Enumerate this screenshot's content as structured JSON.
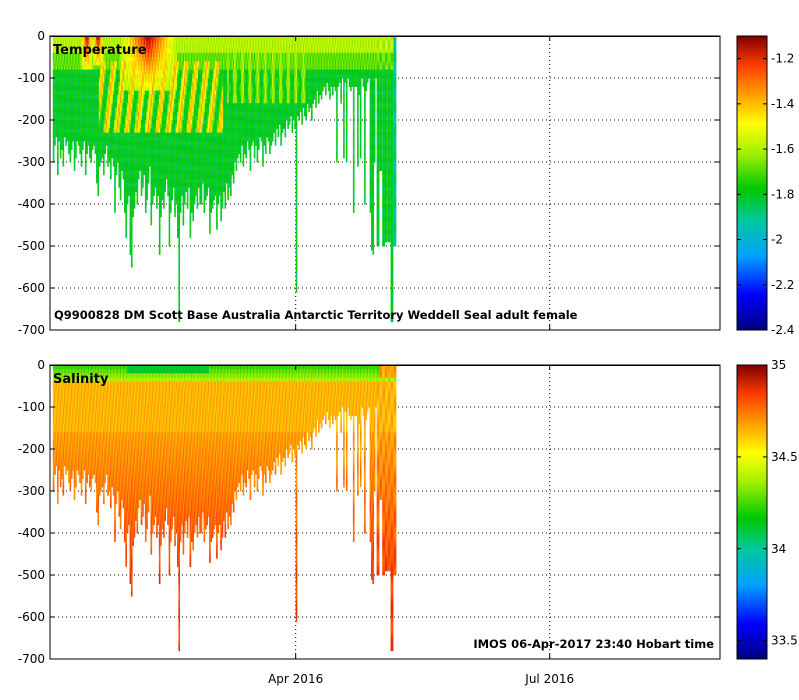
{
  "chart_data": [
    {
      "type": "heatmap",
      "label": "Temperature",
      "annotation": "Q9900828 DM Scott Base Australia Antarctic Territory Weddell Seal adult female",
      "yticks": [
        0,
        -100,
        -200,
        -300,
        -400,
        -500,
        -600,
        -700
      ],
      "ylim": [
        -700,
        0
      ],
      "colorbar": {
        "range": [
          -2.4,
          -1.1
        ],
        "ticks": [
          -1.2,
          -1.4,
          -1.6,
          -1.8,
          -2,
          -2.2,
          -2.4
        ],
        "tick_labels": [
          "-1.2",
          "-1.4",
          "-1.6",
          "-1.8",
          "-2",
          "-2.2",
          "-2.4"
        ]
      }
    },
    {
      "type": "heatmap",
      "label": "Salinity",
      "annotation": "IMOS 06-Apr-2017 23:40 Hobart time",
      "yticks": [
        0,
        -100,
        -200,
        -300,
        -400,
        -500,
        -600,
        -700
      ],
      "ylim": [
        -700,
        0
      ],
      "colorbar": {
        "range": [
          33.4,
          35
        ],
        "ticks": [
          35,
          34.5,
          34,
          33.5
        ],
        "tick_labels": [
          "35",
          "34.5",
          "34",
          "33.5"
        ]
      }
    }
  ],
  "xaxis": {
    "ticks": [
      {
        "label": "Apr 2016",
        "day": 91
      },
      {
        "label": "Jul 2016",
        "day": 182
      }
    ],
    "start_day": 3,
    "end_day": 243
  },
  "profiles": {
    "note": "Vertical profile casts: day of year (2016) and maximum depth (m)",
    "days": [
      4.0,
      4.5,
      5.0,
      5.5,
      6.0,
      6.5,
      7.0,
      7.5,
      8.0,
      8.5,
      9.0,
      9.5,
      10.0,
      10.5,
      11.0,
      11.5,
      12.0,
      12.5,
      13.0,
      13.5,
      14.0,
      14.5,
      15.0,
      15.5,
      16.0,
      16.5,
      17.0,
      17.5,
      18.0,
      18.5,
      19.0,
      19.5,
      20.0,
      20.5,
      21.0,
      21.5,
      22.0,
      22.5,
      23.0,
      23.5,
      24.0,
      24.5,
      25.0,
      25.5,
      26.0,
      26.5,
      27.0,
      27.5,
      28.0,
      28.5,
      29.0,
      29.5,
      30.0,
      30.5,
      31.0,
      31.5,
      32.0,
      32.5,
      33.0,
      33.5,
      34.0,
      34.5,
      35.0,
      35.5,
      36.0,
      36.5,
      37.0,
      37.5,
      38.0,
      38.5,
      39.0,
      39.5,
      40.0,
      40.5,
      41.0,
      41.5,
      42.0,
      42.5,
      43.0,
      43.5,
      44.0,
      44.5,
      45.0,
      45.5,
      46.0,
      46.5,
      47.0,
      47.5,
      48.0,
      48.5,
      49.0,
      49.5,
      50.0,
      50.5,
      51.0,
      51.5,
      52.0,
      52.5,
      53.0,
      53.5,
      54.0,
      54.5,
      55.0,
      55.5,
      56.0,
      56.5,
      57.0,
      57.5,
      58.0,
      58.5,
      59.0,
      59.5,
      60.0,
      60.5,
      61.0,
      61.5,
      62.0,
      62.5,
      63.0,
      63.5,
      64.0,
      64.5,
      65.0,
      65.5,
      66.0,
      66.5,
      67.0,
      67.5,
      68.0,
      68.5,
      69.0,
      69.5,
      70.0,
      70.5,
      71.0,
      71.5,
      72.0,
      72.5,
      73.0,
      73.5,
      74.0,
      74.5,
      75.0,
      75.5,
      76.0,
      76.5,
      77.0,
      77.5,
      78.0,
      78.5,
      79.0,
      79.5,
      80.0,
      80.5,
      81.0,
      81.5,
      82.0,
      82.5,
      83.0,
      83.5,
      84.0,
      84.5,
      85.0,
      85.5,
      86.0,
      86.5,
      87.0,
      87.5,
      88.0,
      88.5,
      89.0,
      89.5,
      90.0,
      90.5,
      91.0,
      91.5,
      92.0,
      92.5,
      93.0,
      93.5,
      94.0,
      94.5,
      95.0,
      95.5,
      96.0,
      96.5,
      97.0,
      97.5,
      98.0,
      98.5,
      99.0,
      99.5,
      100.0,
      100.5,
      101.0,
      101.5,
      102.0,
      102.5,
      103.0,
      103.5,
      104.0,
      104.5,
      105.0,
      105.5,
      106.0,
      106.5,
      107.0,
      107.5,
      108.0,
      108.5,
      109.0,
      109.5,
      110.0,
      110.5,
      111.0,
      111.5,
      112.0,
      112.5,
      113.0,
      113.5,
      114.0,
      114.5,
      115.0,
      115.5,
      116.0,
      116.5,
      117.0,
      117.5,
      118.0,
      118.5,
      119.0,
      119.5,
      120.0,
      121.0,
      122.0,
      123.0,
      124.0,
      125.0,
      126.0,
      128.0,
      130.0,
      131.0,
      132.0,
      134.0,
      135.0,
      137.0,
      138.0,
      140.0,
      142.0,
      144.0,
      147.0,
      154.0,
      157.0,
      159.0,
      162.0,
      164.0,
      166.0,
      167.0,
      173.0,
      177.0,
      182.0,
      186.0,
      193.0,
      195.0,
      196.0,
      197.0,
      198.0,
      200.0,
      208.0,
      209.0,
      218.0,
      228.0,
      229.0,
      231.0,
      232.0
    ],
    "depths": [
      300,
      260,
      240,
      330,
      250,
      290,
      270,
      310,
      240,
      260,
      250,
      280,
      300,
      270,
      250,
      320,
      290,
      250,
      260,
      280,
      310,
      270,
      250,
      330,
      280,
      260,
      290,
      300,
      270,
      260,
      280,
      350,
      380,
      310,
      300,
      290,
      330,
      280,
      260,
      310,
      300,
      340,
      290,
      310,
      420,
      330,
      300,
      360,
      390,
      320,
      340,
      420,
      480,
      400,
      380,
      520,
      550,
      430,
      410,
      370,
      400,
      340,
      320,
      380,
      360,
      330,
      420,
      390,
      350,
      310,
      450,
      400,
      380,
      360,
      410,
      380,
      520,
      430,
      390,
      410,
      370,
      340,
      380,
      500,
      420,
      390,
      360,
      430,
      400,
      480,
      680,
      420,
      380,
      450,
      400,
      370,
      410,
      360,
      480,
      420,
      440,
      400,
      380,
      410,
      360,
      400,
      400,
      350,
      420,
      390,
      380,
      360,
      470,
      420,
      410,
      390,
      380,
      460,
      400,
      380,
      440,
      410,
      370,
      410,
      350,
      390,
      360,
      380,
      330,
      350,
      300,
      320,
      290,
      280,
      300,
      260,
      310,
      280,
      290,
      250,
      270,
      320,
      260,
      250,
      290,
      260,
      300,
      270,
      240,
      250,
      310,
      260,
      280,
      240,
      250,
      280,
      260,
      250,
      230,
      260,
      220,
      240,
      210,
      260,
      230,
      220,
      240,
      200,
      220,
      210,
      190,
      230,
      200,
      220,
      610,
      190,
      200,
      180,
      210,
      170,
      190,
      200,
      160,
      180,
      170,
      200,
      160,
      150,
      170,
      130,
      160,
      140,
      150,
      130,
      120,
      140,
      110,
      130,
      150,
      120,
      140,
      120,
      130,
      300,
      120,
      110,
      160,
      100,
      290,
      110,
      300,
      100,
      120,
      130,
      120,
      420,
      120,
      120,
      310,
      140,
      290,
      100,
      120,
      400,
      130,
      110,
      100,
      420,
      510,
      520,
      300,
      100,
      500,
      320,
      500,
      490,
      490,
      680,
      500
    ],
    "temp_hot_days": [
      [
        28,
        48,
        120
      ],
      [
        14,
        18,
        70
      ],
      [
        18,
        22,
        60
      ]
    ],
    "sal_fresh_depth": 40
  }
}
